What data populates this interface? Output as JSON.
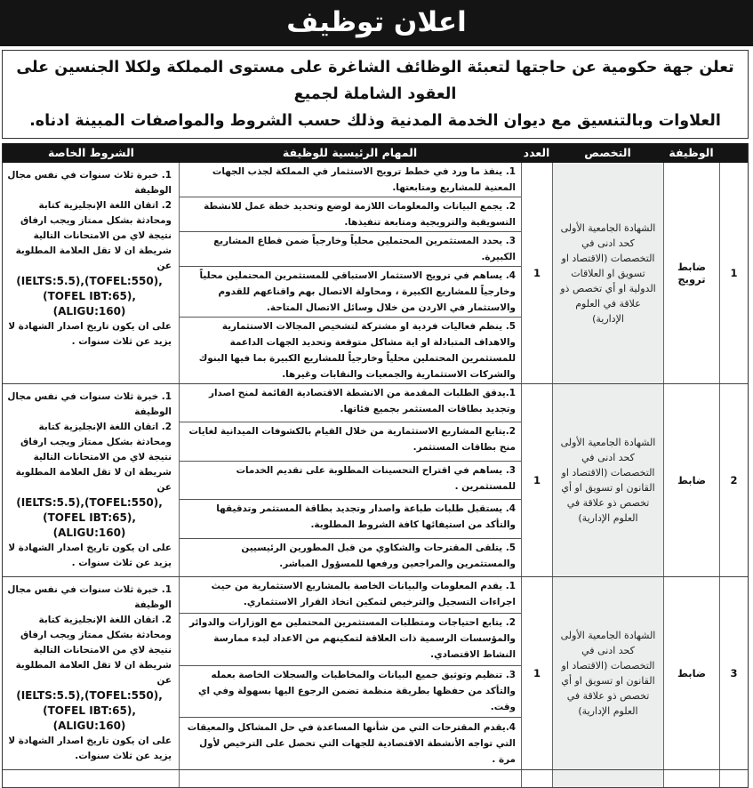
{
  "title": "اعلان توظيف",
  "intro": {
    "line1": "تعلن جهة حكومية عن حاجتها لتعبئة الوظائف الشاغرة على مستوى المملكة ولكلا الجنسين على العقود الشاملة لجميع",
    "line2": "العلاوات وبالتنسيق مع ديوان الخدمة المدنية وذلك حسب الشروط والمواصفات المبينة ادناه."
  },
  "headers": {
    "job": "الوظيفة",
    "specialization": "التخصص",
    "count": "العدد",
    "tasks": "المهام الرئيسية للوظيفة",
    "conditions": "الشروط الخاصة"
  },
  "rows": [
    {
      "num": "1",
      "job": "ضابط ترويج",
      "specialization": "الشهادة الجامعية الأولى كحد ادنى في التخصصات (الاقتصاد او تسويق او العلاقات الدولية او أي تخصص ذو علاقة في العلوم الإدارية)",
      "count": "1",
      "tasks": [
        "1.  ينفذ ما ورد في خطط ترويج الاستثمار في المملكة لجذب الجهات المعنية للمشاريع ومتابعتها.",
        "2.  يجمع البيانات والمعلومات اللازمة لوضع وتحديد خطة عمل للانشطة التسويقية والترويجية ومتابعة تنفيذها.",
        "3.  يحدد المستثمرين المحتملين محلياً وخارجياً ضمن قطاع المشاريع الكبيرة.",
        "4.  يساهم في ترويج الاستثمار الاستباقي للمستثمرين المحتملين محلياً وخارجياً للمشاريع الكبيرة ، ومحاولة الاتصال بهم واقناعهم للقدوم والاستثمار في الاردن من خلال وسائل الاتصال المتاحة.",
        "5.  ينظم فعاليات فردية او مشتركة لتشخيص المجالات الاستثمارية والاهداف المتبادلة او اية مشاكل متوقعة وتحديد الجهات الداعمة للمستثمرين المحتملين محلياً وخارجياً للمشاريع الكبيرة بما فيها البنوك والشركات الاستثمارية والجمعيات والنقابات وغيرها."
      ],
      "conditions": {
        "text1": "1. خبرة ثلاث سنوات في نفس مجال الوظيفة",
        "text2": "2. اتقان اللغة الإنجليزية كتابة ومحادثة بشكل ممتاز  ويجب ارفاق نتيجة لاي من الامتحانات  التالية شريطة ان لا تقل العلامة المطلوبة عن",
        "en1": "(IELTS:5.5),(TOFEL:550),",
        "en2": "(TOFEL IBT:65),(ALIGU:160)",
        "text3": "على ان يكون تاريخ اصدار الشهادة لا يزيد عن ثلاث سنوات ."
      }
    },
    {
      "num": "2",
      "job": "ضابط",
      "specialization": "الشهادة الجامعية الأولى كحد ادنى في التخصصات (الاقتصاد او القانون او تسويق  او أي تخصص ذو علاقة في العلوم الإدارية)",
      "count": "1",
      "tasks": [
        "1.يدقق الطلبات المقدمة من الانشطة الاقتصادية القائمة لمنح اصدار وتجديد بطاقات المستثمر بجميع فئاتها.",
        "2.يتابع المشاريع الاستثمارية من خلال القيام بالكشوفات الميدانية لغايات منح بطاقات المستثمر.",
        "3. يساهم في اقتراح التحسينات المطلوبة على تقديم الخدمات للمستثمرين .",
        "4. يستقبل طلبات طباعة واصدار وتجديد بطاقة المستثمر وتدقيقها والتأكد من استيفائها كافة الشروط المطلوبة.",
        "5. يتلقى المقترحات والشكاوي من قبل المطورين الرئيسيين والمستثمرين والمراجعين ورفعها للمسؤول المباشر."
      ],
      "conditions": {
        "text1": "1. خبرة ثلاث سنوات في نفس مجال الوظيفة",
        "text2": "2. اتقان اللغة الإنجليزية كتابة ومحادثة بشكل ممتاز  ويجب ارفاق نتيجة لاي من الامتحانات  التالية شريطة ان لا تقل العلامة المطلوبة عن",
        "en1": "(IELTS:5.5),(TOFEL:550),",
        "en2": "(TOFEL IBT:65),(ALIGU:160)",
        "text3": "على ان يكون تاريخ اصدار الشهادة لا يزيد عن ثلاث سنوات ."
      }
    },
    {
      "num": "3",
      "job": "ضابط",
      "specialization": "الشهادة الجامعية الأولى كحد ادنى في التخصصات (الاقتصاد او القانون او تسويق  او أي تخصص ذو علاقة في العلوم الإدارية)",
      "count": "1",
      "tasks": [
        "1.  يقدم المعلومات والبيانات الخاصة بالمشاريع الاستثمارية من حيث اجراءات التسجيل والترخيص لتمكين اتخاذ القرار الاستثماري.",
        "2. يتابع احتياجات ومتطلبات المستثمرين المحتملين مع الوزارات والدوائر والمؤسسات الرسمية ذات العلاقة لتمكينهم من الاعداد لبدء ممارسة النشاط الاقتصادي.",
        "3. تنظيم وتوثيق جميع البيانات والمخاطبات والسجلات الخاصة بعمله والتأكد من حفظها بطريقة منظمة تضمن الرجوع اليها بسهولة وفي اي وقت.",
        "4.يقدم المقترحات التي من شأنها المساعدة في حل المشاكل والمعيقات التي تواجه الأنشطة الاقتصادية للجهات التي تحصل على الترخيص لأول مرة ."
      ],
      "conditions": {
        "text1": "1. خبرة ثلاث سنوات في نفس مجال الوظيفة",
        "text2": "2. اتقان اللغة الإنجليزية كتابة ومحادثة بشكل ممتاز  ويجب ارفاق نتيجة لاي من الامتحانات  التالية شريطة ان لا تقل العلامة المطلوبة عن",
        "en1": "(IELTS:5.5),(TOFEL:550),",
        "en2": "(TOFEL IBT:65),(ALIGU:160)",
        "text3": "على ان يكون تاريخ اصدار الشهادة لا يزيد عن ثلاث سنوات."
      }
    }
  ]
}
